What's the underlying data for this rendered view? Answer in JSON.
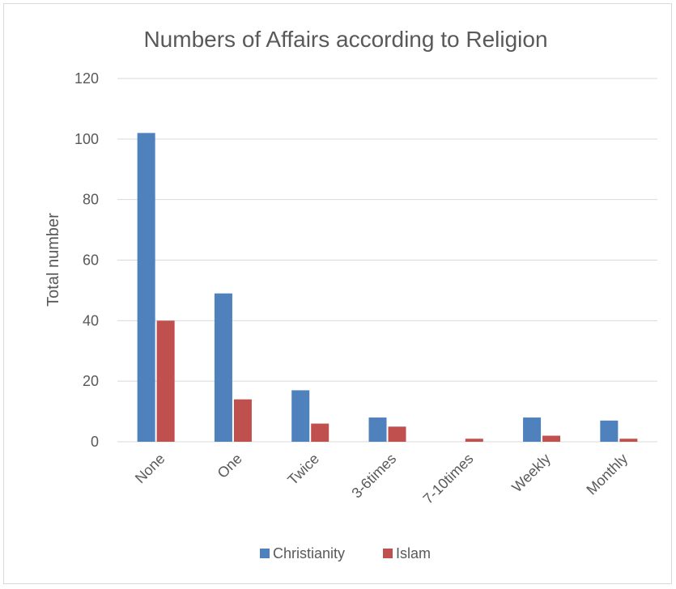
{
  "chart_data": {
    "type": "bar",
    "title": "Numbers of Affairs according to Religion",
    "xlabel": "",
    "ylabel": "Total number",
    "ylim": [
      0,
      120
    ],
    "yticks": [
      0,
      20,
      40,
      60,
      80,
      100,
      120
    ],
    "categories": [
      "None",
      "One",
      "Twice",
      "3-6times",
      "7-10times",
      "Weekly",
      "Monthly"
    ],
    "series": [
      {
        "name": "Christianity",
        "values": [
          102,
          49,
          17,
          8,
          0,
          8,
          7
        ],
        "color": "#4F81BD"
      },
      {
        "name": "Islam",
        "values": [
          40,
          14,
          6,
          5,
          1,
          2,
          1
        ],
        "color": "#C0504D"
      }
    ],
    "grid": true,
    "legend_position": "bottom",
    "gridline_color": "#d9d9d9"
  }
}
